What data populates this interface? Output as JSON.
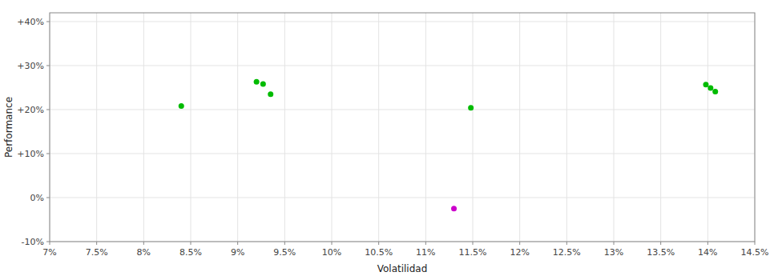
{
  "chart_data": {
    "type": "scatter",
    "xlabel": "Volatilidad",
    "ylabel": "Performance",
    "xlim": [
      0.07,
      0.145
    ],
    "ylim": [
      -0.1,
      0.42
    ],
    "xticks": [
      {
        "value": 0.07,
        "label": "7%"
      },
      {
        "value": 0.075,
        "label": "7.5%"
      },
      {
        "value": 0.08,
        "label": "8%"
      },
      {
        "value": 0.085,
        "label": "8.5%"
      },
      {
        "value": 0.09,
        "label": "9%"
      },
      {
        "value": 0.095,
        "label": "9.5%"
      },
      {
        "value": 0.1,
        "label": "10%"
      },
      {
        "value": 0.105,
        "label": "10.5%"
      },
      {
        "value": 0.11,
        "label": "11%"
      },
      {
        "value": 0.115,
        "label": "11.5%"
      },
      {
        "value": 0.12,
        "label": "12%"
      },
      {
        "value": 0.125,
        "label": "12.5%"
      },
      {
        "value": 0.13,
        "label": "13%"
      },
      {
        "value": 0.135,
        "label": "13.5%"
      },
      {
        "value": 0.14,
        "label": "14%"
      },
      {
        "value": 0.145,
        "label": "14.5%"
      }
    ],
    "yticks": [
      {
        "value": -0.1,
        "label": "-10%"
      },
      {
        "value": 0.0,
        "label": "0%"
      },
      {
        "value": 0.1,
        "label": "+10%"
      },
      {
        "value": 0.2,
        "label": "+20%"
      },
      {
        "value": 0.3,
        "label": "+30%"
      },
      {
        "value": 0.4,
        "label": "+40%"
      }
    ],
    "grid": true,
    "series": [
      {
        "color": "#00bb00",
        "x": [
          0.084,
          0.092,
          0.0927,
          0.0935,
          0.1148,
          0.1398,
          0.1403,
          0.1408
        ],
        "values": [
          0.208,
          0.263,
          0.258,
          0.235,
          0.204,
          0.257,
          0.249,
          0.241
        ]
      },
      {
        "color": "#cc00cc",
        "x": [
          0.113
        ],
        "values": [
          -0.025
        ]
      }
    ]
  }
}
